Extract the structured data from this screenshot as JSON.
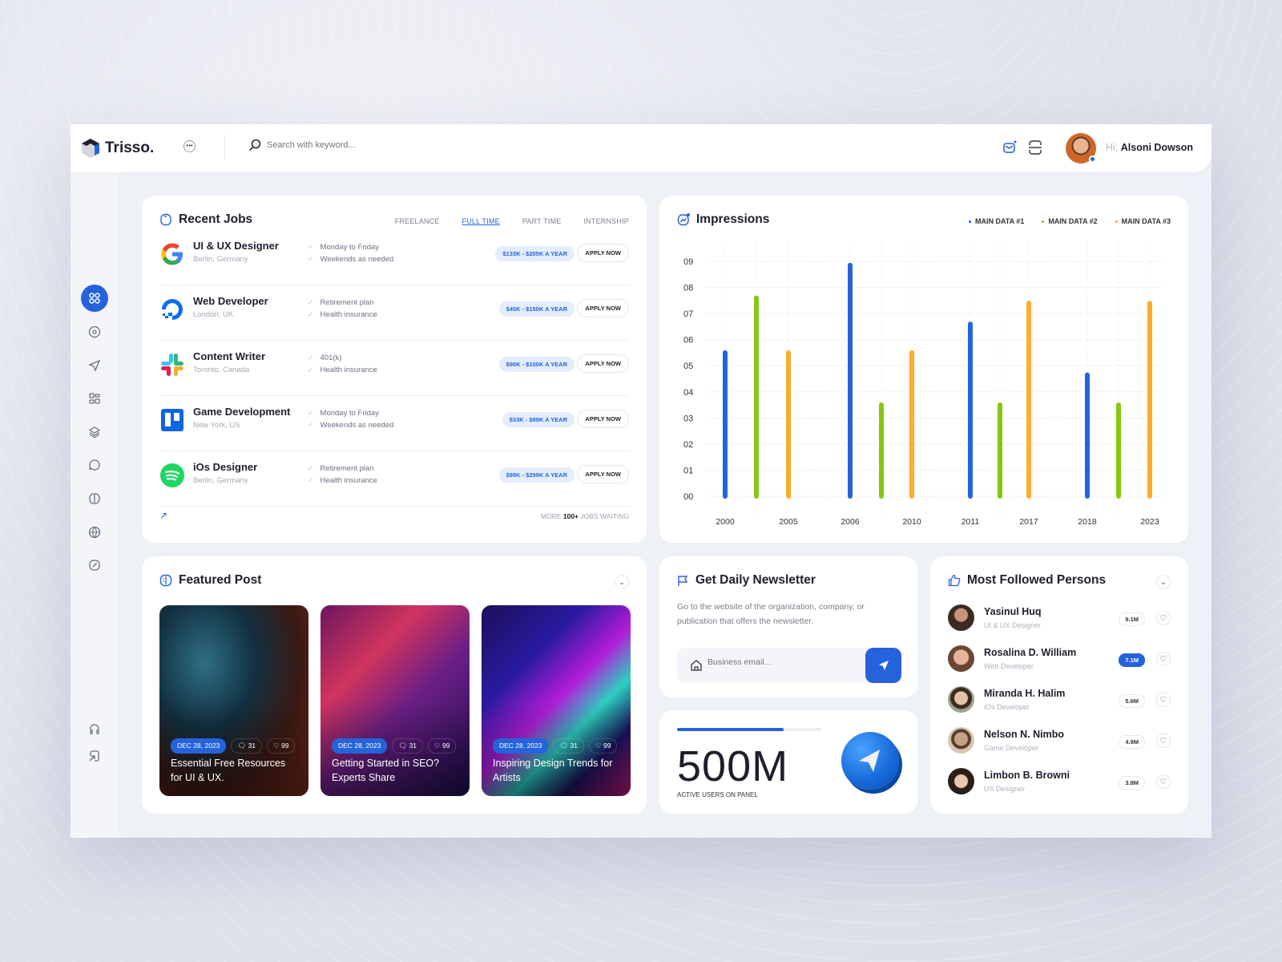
{
  "app": {
    "name": "Trisso."
  },
  "header": {
    "search_placeholder": "Search with keyword...",
    "greeting": "Hi,",
    "user_name": "Alsoni Dowson"
  },
  "sidebar": {
    "items": [
      "dashboard-icon",
      "compass-icon",
      "send-icon",
      "widgets-icon",
      "layers-icon",
      "chat-icon",
      "book-icon",
      "globe-icon",
      "edit-icon"
    ],
    "bottom": [
      "headset-icon",
      "logout-icon"
    ]
  },
  "recent_jobs": {
    "title": "Recent Jobs",
    "tabs": [
      "FREELANCE",
      "FULL TIME",
      "PART TIME",
      "INTERNSHIP"
    ],
    "active_tab": "FULL TIME",
    "jobs": [
      {
        "title": "UI & UX Designer",
        "location": "Berlin, Germany",
        "perks": [
          "Monday to Friday",
          "Weekends as needed"
        ],
        "salary": "$133K - $205K A YEAR",
        "apply": "APPLY NOW",
        "logo": "google"
      },
      {
        "title": "Web Developer",
        "location": "London, UK",
        "perks": [
          "Retirement plan",
          "Health insurance"
        ],
        "salary": "$45K - $150K A YEAR",
        "apply": "APPLY NOW",
        "logo": "digitalocean"
      },
      {
        "title": "Content Writer",
        "location": "Toronto, Canada",
        "perks": [
          "401(k)",
          "Health insurance"
        ],
        "salary": "$90K - $100K A YEAR",
        "apply": "APPLY NOW",
        "logo": "slack"
      },
      {
        "title": "Game Development",
        "location": "New York, US",
        "perks": [
          "Monday to Friday",
          "Weekends as needed"
        ],
        "salary": "$33K - $99K A YEAR",
        "apply": "APPLY NOW",
        "logo": "trello"
      },
      {
        "title": "iOs Designer",
        "location": "Berlin, Germany",
        "perks": [
          "Retirement plan",
          "Health insurance"
        ],
        "salary": "$99K - $299K A YEAR",
        "apply": "APPLY NOW",
        "logo": "spotify"
      }
    ],
    "footer": {
      "more": "MORE",
      "count": "100+",
      "rest": "JOBS WAITING"
    }
  },
  "chart_data": {
    "type": "bar",
    "title": "Impressions",
    "legend_position": "top-right",
    "grid": true,
    "yticks": [
      "00",
      "01",
      "02",
      "03",
      "04",
      "05",
      "06",
      "07",
      "08",
      "09"
    ],
    "ylim": [
      0,
      9
    ],
    "series": [
      {
        "name": "MAIN DATA #1",
        "color": "#2563dc",
        "values": [
          5.5,
          8.85,
          6.6,
          4.65
        ]
      },
      {
        "name": "MAIN DATA #2",
        "color": "#86c70e",
        "values": [
          7.6,
          3.5,
          3.5,
          3.5
        ]
      },
      {
        "name": "MAIN DATA #3",
        "color": "#ffab2e",
        "values": [
          5.5,
          5.5,
          7.4,
          7.4
        ]
      }
    ],
    "xtick_labels": [
      "2000",
      "2005",
      "2006",
      "2010",
      "2011",
      "2017",
      "2018",
      "2023"
    ]
  },
  "featured": {
    "title": "Featured Post",
    "posts": [
      {
        "date": "DEC 28, 2023",
        "comments": "31",
        "likes": "99",
        "title": "Essential Free Resources for UI & UX."
      },
      {
        "date": "DEC 28, 2023",
        "comments": "31",
        "likes": "99",
        "title": "Getting Started in SEO? Experts Share"
      },
      {
        "date": "DEC 28, 2023",
        "comments": "31",
        "likes": "99",
        "title": "Inspiring Design Trends for Artists"
      }
    ]
  },
  "newsletter": {
    "title": "Get Daily Newsletter",
    "text": "Go to the website of the organization, company, or publication that offers the newsletter.",
    "placeholder": "Business email..."
  },
  "stats": {
    "value": "500M",
    "label": "ACTIVE USERS ON PANEL",
    "progress": 0.74
  },
  "followed": {
    "title": "Most Followed Persons",
    "people": [
      {
        "name": "Yasinul Huq",
        "role": "UI & UX Designer",
        "count": "9.1M"
      },
      {
        "name": "Rosalina D. William",
        "role": "Web Developer",
        "count": "7.1M",
        "highlight": true
      },
      {
        "name": "Miranda H. Halim",
        "role": "iOs Developer",
        "count": "5.6M"
      },
      {
        "name": "Nelson N. Nimbo",
        "role": "Game Developer",
        "count": "4.9M"
      },
      {
        "name": "Limbon B. Browni",
        "role": "UX Designer",
        "count": "3.8M"
      }
    ]
  },
  "colors": {
    "accent": "#2563dc",
    "green": "#86c70e",
    "orange": "#ffab2e"
  }
}
